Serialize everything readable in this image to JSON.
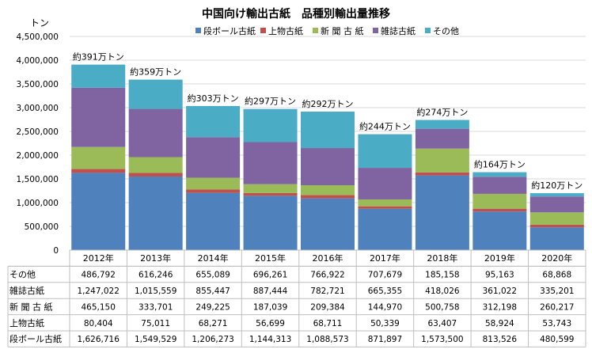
{
  "chart_data": {
    "type": "bar",
    "stacked": true,
    "title": "中国向け輸出古紙　品種別輸出量推移",
    "ylabel": "トン",
    "ylim": [
      0,
      4500000
    ],
    "yticks": [
      "0",
      "500,000",
      "1,000,000",
      "1,500,000",
      "2,000,000",
      "2,500,000",
      "3,000,000",
      "3,500,000",
      "4,000,000",
      "4,500,000"
    ],
    "grid": true,
    "legend_position": "top",
    "categories": [
      "2012年",
      "2013年",
      "2014年",
      "2015年",
      "2016年",
      "2017年",
      "2018年",
      "2019年",
      "2020年"
    ],
    "series": [
      {
        "name": "段ボール古紙",
        "color": "#4f81bd",
        "values": [
          1626716,
          1549529,
          1206273,
          1144313,
          1088573,
          871897,
          1573500,
          813526,
          480599
        ],
        "labels": [
          "1,626,716",
          "1,549,529",
          "1,206,273",
          "1,144,313",
          "1,088,573",
          "871,897",
          "1,573,500",
          "813,526",
          "480,599"
        ]
      },
      {
        "name": "上物古紙",
        "color": "#c0504d",
        "values": [
          80404,
          75011,
          68271,
          56699,
          68711,
          50339,
          63407,
          58924,
          53743
        ],
        "labels": [
          "80,404",
          "75,011",
          "68,271",
          "56,699",
          "68,711",
          "50,339",
          "63,407",
          "58,924",
          "53,743"
        ]
      },
      {
        "name": "新 聞 古 紙",
        "color": "#9bbb59",
        "values": [
          465150,
          333701,
          249225,
          187039,
          209384,
          144970,
          500758,
          312198,
          260217
        ],
        "labels": [
          "465,150",
          "333,701",
          "249,225",
          "187,039",
          "209,384",
          "144,970",
          "500,758",
          "312,198",
          "260,217"
        ]
      },
      {
        "name": "雑誌古紙",
        "color": "#8064a2",
        "values": [
          1247022,
          1015559,
          855447,
          887444,
          782721,
          665355,
          418026,
          361022,
          335201
        ],
        "labels": [
          "1,247,022",
          "1,015,559",
          "855,447",
          "887,444",
          "782,721",
          "665,355",
          "418,026",
          "361,022",
          "335,201"
        ]
      },
      {
        "name": "その他",
        "color": "#4bacc6",
        "values": [
          486792,
          616246,
          655089,
          696261,
          766922,
          707679,
          185158,
          95163,
          68868
        ],
        "labels": [
          "486,792",
          "616,246",
          "655,089",
          "696,261",
          "766,922",
          "707,679",
          "185,158",
          "95,163",
          "68,868"
        ]
      }
    ],
    "totals_labels": [
      "約391万トン",
      "約359万トン",
      "約303万トン",
      "約297万トン",
      "約292万トン",
      "約244万トン",
      "約274万トン",
      "約164万トン",
      "約120万トン"
    ],
    "table_row_order": [
      4,
      3,
      2,
      1,
      0
    ]
  }
}
